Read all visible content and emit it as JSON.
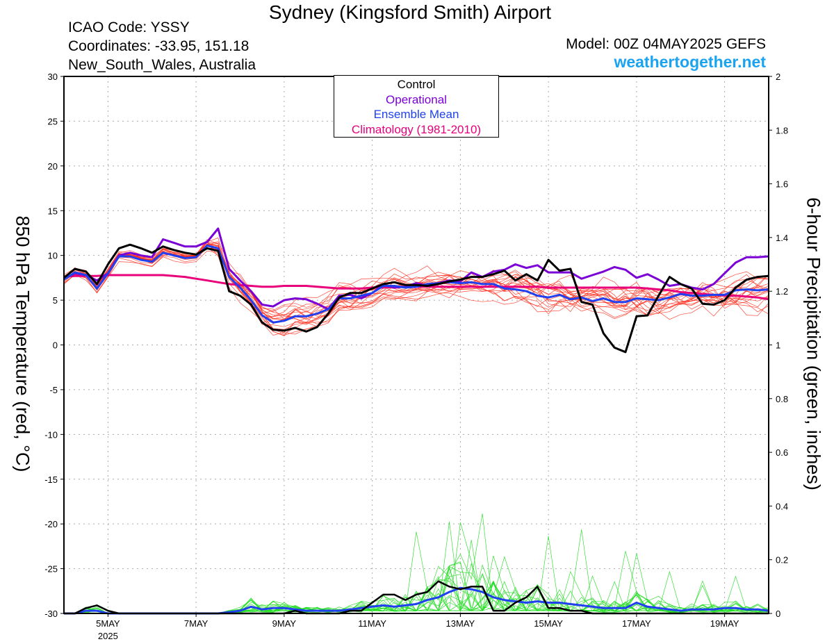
{
  "header": {
    "title": "Sydney (Kingsford Smith) Airport",
    "icao": "ICAO Code: YSSY",
    "coordinates": "Coordinates: -33.95, 151.18",
    "region": "New_South_Wales, Australia",
    "model": "Model: 00Z 04MAY2025 GEFS",
    "site": "weathertogether.net"
  },
  "legend": {
    "items": [
      "Control",
      "Operational",
      "Ensemble Mean",
      "Climatology (1981-2010)"
    ]
  },
  "colors": {
    "control": "#000000",
    "operational": "#7a00d6",
    "ensemble_mean": "#2040f0",
    "climatology": "#e8007a",
    "members_temp": "#ff2a1a",
    "members_precip": "#22dd22",
    "site": "#1aa3f0"
  },
  "chart_data": {
    "type": "line",
    "ylabel_left": "850 hPa Temperature (red, °C)",
    "ylabel_right": "6-hour Precipitation (green, inches)",
    "x_ticks": [
      "5MAY",
      "7MAY",
      "9MAY",
      "11MAY",
      "13MAY",
      "15MAY",
      "17MAY",
      "19MAY"
    ],
    "x_tick_days": [
      5,
      7,
      9,
      11,
      13,
      15,
      17,
      19
    ],
    "year_label": "2025",
    "xlim_days": [
      4,
      20
    ],
    "ylim_left": [
      -30,
      30
    ],
    "yticks_left": [
      30,
      25,
      20,
      15,
      10,
      5,
      0,
      -5,
      -10,
      -15,
      -20,
      -25,
      -30
    ],
    "ylim_right": [
      0,
      2
    ],
    "yticks_right": [
      "2",
      "1.8",
      "1.6",
      "1.4",
      "1.2",
      "1",
      "0.8",
      "0.6",
      "0.4",
      "0.2",
      "0"
    ],
    "grid": true,
    "temperature": {
      "x_days": [
        4,
        4.25,
        4.5,
        4.75,
        5,
        5.25,
        5.5,
        5.75,
        6,
        6.25,
        6.5,
        6.75,
        7,
        7.25,
        7.5,
        7.75,
        8,
        8.25,
        8.5,
        8.75,
        9,
        9.25,
        9.5,
        9.75,
        10,
        10.25,
        10.5,
        10.75,
        11,
        11.25,
        11.5,
        11.75,
        12,
        12.25,
        12.5,
        12.75,
        13,
        13.25,
        13.5,
        13.75,
        14,
        14.25,
        14.5,
        14.75,
        15,
        15.25,
        15.5,
        15.75,
        16,
        16.25,
        16.5,
        16.75,
        17,
        17.25,
        17.5,
        17.75,
        18,
        18.25,
        18.5,
        18.75,
        19,
        19.25,
        19.5,
        19.75,
        20
      ],
      "control": [
        7.5,
        8.5,
        8.2,
        6.8,
        9.0,
        10.8,
        11.2,
        10.8,
        10.3,
        11.0,
        10.6,
        10.3,
        10.1,
        10.8,
        10.5,
        6.0,
        5.5,
        4.5,
        2.5,
        1.7,
        1.6,
        1.9,
        1.5,
        2.0,
        3.5,
        5.3,
        5.8,
        5.8,
        6.3,
        6.8,
        7.0,
        6.7,
        6.7,
        6.6,
        6.8,
        7.1,
        7.3,
        7.6,
        7.6,
        7.9,
        8.3,
        7.2,
        7.9,
        7.2,
        9.5,
        8.3,
        8.5,
        4.8,
        4.5,
        1.3,
        -0.3,
        -0.8,
        3.2,
        3.3,
        5.5,
        7.6,
        6.8,
        6.3,
        4.6,
        4.5,
        5.0,
        6.4,
        7.3,
        7.6,
        7.7
      ],
      "operational": [
        7.4,
        8.0,
        7.8,
        7.2,
        8.0,
        10.0,
        10.3,
        10.0,
        9.8,
        11.8,
        11.4,
        11.0,
        11.0,
        11.5,
        13.0,
        8.5,
        7.2,
        6.0,
        4.5,
        4.3,
        5.0,
        5.2,
        5.1,
        4.6,
        4.0,
        5.5,
        5.6,
        5.2,
        5.8,
        6.7,
        6.4,
        6.5,
        6.9,
        6.6,
        6.9,
        7.2,
        7.1,
        8.1,
        7.6,
        8.2,
        8.4,
        9.0,
        8.6,
        8.9,
        8.1,
        8.1,
        8.1,
        7.4,
        7.8,
        8.2,
        8.7,
        8.4,
        7.5,
        7.9,
        7.3,
        6.6,
        6.8,
        6.4,
        6.2,
        6.8,
        8.0,
        9.2,
        9.8,
        9.8,
        9.9
      ],
      "ensemble_mean": [
        7.3,
        8.1,
        7.8,
        6.3,
        8.0,
        9.9,
        9.9,
        9.5,
        9.3,
        10.3,
        10.0,
        9.7,
        9.8,
        11.1,
        10.8,
        7.6,
        6.4,
        5.0,
        3.3,
        2.5,
        2.7,
        3.2,
        3.2,
        3.5,
        4.0,
        5.2,
        5.2,
        5.5,
        5.8,
        6.6,
        6.6,
        6.4,
        6.5,
        6.8,
        6.9,
        7.0,
        6.9,
        7.0,
        6.8,
        6.8,
        6.3,
        6.2,
        6.0,
        5.5,
        5.3,
        5.6,
        5.1,
        5.3,
        4.9,
        5.2,
        4.8,
        4.8,
        5.2,
        5.1,
        5.0,
        5.3,
        5.7,
        5.5,
        5.5,
        5.6,
        5.6,
        6.1,
        6.2,
        6.1,
        6.2
      ],
      "climatology": [
        7.6,
        7.7,
        7.7,
        7.7,
        7.8,
        7.8,
        7.8,
        7.8,
        7.8,
        7.8,
        7.7,
        7.6,
        7.4,
        7.2,
        7.0,
        6.8,
        6.7,
        6.6,
        6.5,
        6.5,
        6.6,
        6.6,
        6.6,
        6.5,
        6.4,
        6.3,
        6.3,
        6.3,
        6.4,
        6.4,
        6.5,
        6.5,
        6.5,
        6.5,
        6.5,
        6.5,
        6.5,
        6.5,
        6.5,
        6.5,
        6.5,
        6.5,
        6.5,
        6.5,
        6.4,
        6.4,
        6.4,
        6.4,
        6.4,
        6.4,
        6.4,
        6.4,
        6.4,
        6.3,
        6.2,
        6.1,
        5.9,
        5.8,
        5.7,
        5.6,
        5.5,
        5.5,
        5.4,
        5.3,
        5.1
      ]
    },
    "precipitation": {
      "x_days": [
        4,
        4.25,
        4.5,
        4.75,
        5,
        5.25,
        5.5,
        5.75,
        6,
        6.25,
        6.5,
        6.75,
        7,
        7.25,
        7.5,
        7.75,
        8,
        8.25,
        8.5,
        8.75,
        9,
        9.25,
        9.5,
        9.75,
        10,
        10.25,
        10.5,
        10.75,
        11,
        11.25,
        11.5,
        11.75,
        12,
        12.25,
        12.5,
        12.75,
        13,
        13.25,
        13.5,
        13.75,
        14,
        14.25,
        14.5,
        14.75,
        15,
        15.25,
        15.5,
        15.75,
        16,
        16.25,
        16.5,
        16.75,
        17,
        17.25,
        17.5,
        17.75,
        18,
        18.25,
        18.5,
        18.75,
        19,
        19.25,
        19.5,
        19.75,
        20
      ],
      "control": [
        0,
        0,
        0.02,
        0.03,
        0.01,
        0,
        0,
        0,
        0,
        0,
        0,
        0,
        0,
        0,
        0,
        0,
        0,
        0,
        0,
        0,
        0,
        0.01,
        0,
        0,
        0,
        0,
        0.01,
        0.01,
        0.04,
        0.07,
        0.07,
        0.05,
        0.07,
        0.08,
        0.12,
        0.1,
        0.09,
        0.1,
        0.1,
        0.01,
        0.01,
        0.04,
        0.06,
        0.1,
        0.02,
        0.02,
        0.01,
        0.01,
        0,
        0,
        0,
        0,
        0,
        0,
        0,
        0,
        0,
        0,
        0,
        0,
        0,
        0,
        0,
        0,
        0
      ],
      "ensemble_mean": [
        0,
        0,
        0.01,
        0.01,
        0,
        0,
        0,
        0,
        0,
        0,
        0,
        0,
        0,
        0,
        0,
        0.005,
        0.01,
        0.025,
        0.015,
        0.02,
        0.02,
        0.015,
        0.01,
        0.01,
        0.01,
        0.01,
        0.015,
        0.02,
        0.025,
        0.03,
        0.025,
        0.03,
        0.035,
        0.05,
        0.06,
        0.08,
        0.095,
        0.09,
        0.08,
        0.06,
        0.05,
        0.045,
        0.04,
        0.045,
        0.04,
        0.04,
        0.035,
        0.03,
        0.025,
        0.02,
        0.02,
        0.02,
        0.04,
        0.025,
        0.02,
        0.015,
        0.01,
        0.015,
        0.015,
        0.015,
        0.02,
        0.02,
        0.015,
        0.015,
        0.01
      ]
    }
  }
}
